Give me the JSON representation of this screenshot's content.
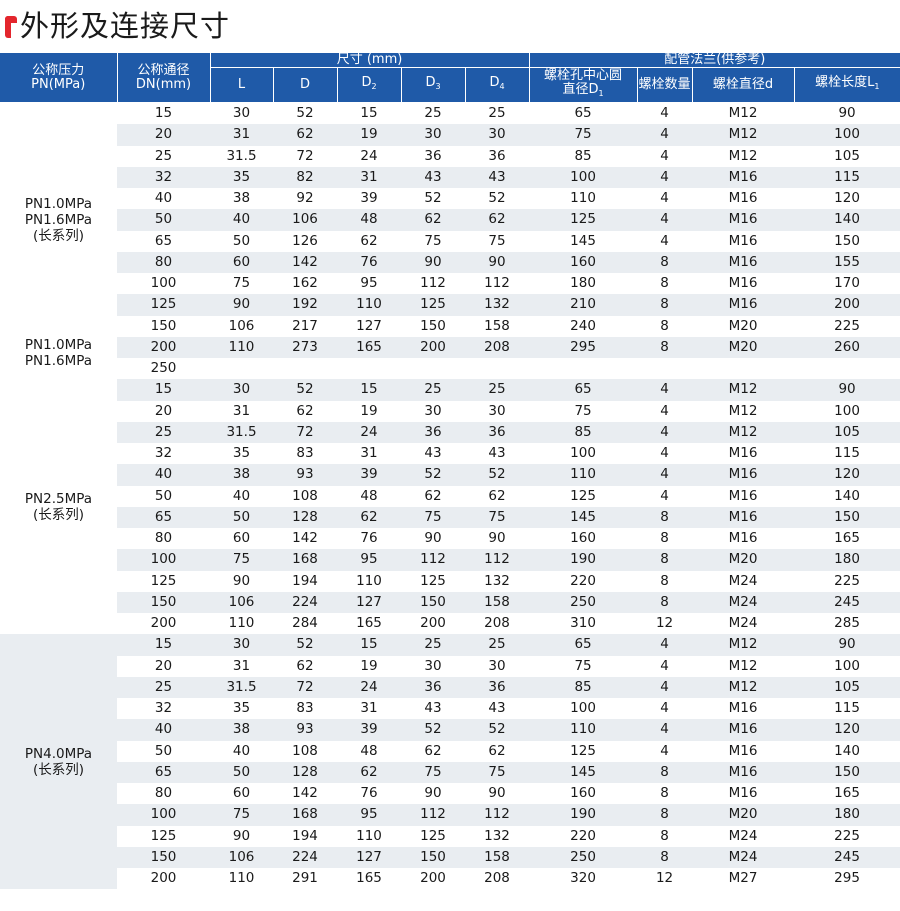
{
  "title": "外形及连接尺寸",
  "header": {
    "pn": [
      "公称压力",
      "PN(MPa)"
    ],
    "dn": [
      "公称通径",
      "DN(mm)"
    ],
    "dims_group": "尺寸 (mm)",
    "flange_group": "配管法兰(供参考)",
    "L": "L",
    "D": "D",
    "D2": [
      "D",
      "2"
    ],
    "D3": [
      "D",
      "3"
    ],
    "D4": [
      "D",
      "4"
    ],
    "bolt_circle": [
      "螺栓孔中心圆",
      "直径D",
      "1"
    ],
    "bolt_count": "螺栓数量",
    "bolt_dia": "螺栓直径d",
    "bolt_len": [
      "螺栓长度L",
      "1"
    ]
  },
  "groups": [
    {
      "label": [
        "PN1.0MPa",
        "PN1.6MPa",
        "(长系列)"
      ],
      "rows": [
        [
          "15",
          "30",
          "52",
          "15",
          "25",
          "25",
          "65",
          "4",
          "M12",
          "90"
        ],
        [
          "20",
          "31",
          "62",
          "19",
          "30",
          "30",
          "75",
          "4",
          "M12",
          "100"
        ],
        [
          "25",
          "31.5",
          "72",
          "24",
          "36",
          "36",
          "85",
          "4",
          "M12",
          "105"
        ],
        [
          "32",
          "35",
          "82",
          "31",
          "43",
          "43",
          "100",
          "4",
          "M16",
          "115"
        ],
        [
          "40",
          "38",
          "92",
          "39",
          "52",
          "52",
          "110",
          "4",
          "M16",
          "120"
        ],
        [
          "50",
          "40",
          "106",
          "48",
          "62",
          "62",
          "125",
          "4",
          "M16",
          "140"
        ],
        [
          "65",
          "50",
          "126",
          "62",
          "75",
          "75",
          "145",
          "4",
          "M16",
          "150"
        ],
        [
          "80",
          "60",
          "142",
          "76",
          "90",
          "90",
          "160",
          "8",
          "M16",
          "155"
        ],
        [
          "100",
          "75",
          "162",
          "95",
          "112",
          "112",
          "180",
          "8",
          "M16",
          "170"
        ],
        [
          "125",
          "90",
          "192",
          "110",
          "125",
          "132",
          "210",
          "8",
          "M16",
          "200"
        ],
        [
          "150",
          "106",
          "217",
          "127",
          "150",
          "158",
          "240",
          "8",
          "M20",
          "225"
        ]
      ]
    },
    {
      "label": [
        "PN1.0MPa",
        "PN1.6MPa"
      ],
      "rows": [
        [
          "200",
          "110",
          "273",
          "165",
          "200",
          "208",
          "295",
          "8",
          "M20",
          "260"
        ],
        [
          "250",
          "",
          "",
          "",
          "",
          "",
          "",
          "",
          "",
          ""
        ]
      ]
    },
    {
      "label": [
        "PN2.5MPa",
        "(长系列)"
      ],
      "rows": [
        [
          "15",
          "30",
          "52",
          "15",
          "25",
          "25",
          "65",
          "4",
          "M12",
          "90"
        ],
        [
          "20",
          "31",
          "62",
          "19",
          "30",
          "30",
          "75",
          "4",
          "M12",
          "100"
        ],
        [
          "25",
          "31.5",
          "72",
          "24",
          "36",
          "36",
          "85",
          "4",
          "M12",
          "105"
        ],
        [
          "32",
          "35",
          "83",
          "31",
          "43",
          "43",
          "100",
          "4",
          "M16",
          "115"
        ],
        [
          "40",
          "38",
          "93",
          "39",
          "52",
          "52",
          "110",
          "4",
          "M16",
          "120"
        ],
        [
          "50",
          "40",
          "108",
          "48",
          "62",
          "62",
          "125",
          "4",
          "M16",
          "140"
        ],
        [
          "65",
          "50",
          "128",
          "62",
          "75",
          "75",
          "145",
          "8",
          "M16",
          "150"
        ],
        [
          "80",
          "60",
          "142",
          "76",
          "90",
          "90",
          "160",
          "8",
          "M16",
          "165"
        ],
        [
          "100",
          "75",
          "168",
          "95",
          "112",
          "112",
          "190",
          "8",
          "M20",
          "180"
        ],
        [
          "125",
          "90",
          "194",
          "110",
          "125",
          "132",
          "220",
          "8",
          "M24",
          "225"
        ],
        [
          "150",
          "106",
          "224",
          "127",
          "150",
          "158",
          "250",
          "8",
          "M24",
          "245"
        ],
        [
          "200",
          "110",
          "284",
          "165",
          "200",
          "208",
          "310",
          "12",
          "M24",
          "285"
        ]
      ]
    },
    {
      "label": [
        "PN4.0MPa",
        "(长系列)"
      ],
      "rows": [
        [
          "15",
          "30",
          "52",
          "15",
          "25",
          "25",
          "65",
          "4",
          "M12",
          "90"
        ],
        [
          "20",
          "31",
          "62",
          "19",
          "30",
          "30",
          "75",
          "4",
          "M12",
          "100"
        ],
        [
          "25",
          "31.5",
          "72",
          "24",
          "36",
          "36",
          "85",
          "4",
          "M12",
          "105"
        ],
        [
          "32",
          "35",
          "83",
          "31",
          "43",
          "43",
          "100",
          "4",
          "M16",
          "115"
        ],
        [
          "40",
          "38",
          "93",
          "39",
          "52",
          "52",
          "110",
          "4",
          "M16",
          "120"
        ],
        [
          "50",
          "40",
          "108",
          "48",
          "62",
          "62",
          "125",
          "4",
          "M16",
          "140"
        ],
        [
          "65",
          "50",
          "128",
          "62",
          "75",
          "75",
          "145",
          "8",
          "M16",
          "150"
        ],
        [
          "80",
          "60",
          "142",
          "76",
          "90",
          "90",
          "160",
          "8",
          "M16",
          "165"
        ],
        [
          "100",
          "75",
          "168",
          "95",
          "112",
          "112",
          "190",
          "8",
          "M20",
          "180"
        ],
        [
          "125",
          "90",
          "194",
          "110",
          "125",
          "132",
          "220",
          "8",
          "M24",
          "225"
        ],
        [
          "150",
          "106",
          "224",
          "127",
          "150",
          "158",
          "250",
          "8",
          "M24",
          "245"
        ],
        [
          "200",
          "110",
          "291",
          "165",
          "200",
          "208",
          "320",
          "12",
          "M27",
          "295"
        ]
      ]
    }
  ],
  "colors": {
    "header": "#1f5aa8",
    "accent": "#e3262d",
    "stripe": "#e9edf1"
  }
}
